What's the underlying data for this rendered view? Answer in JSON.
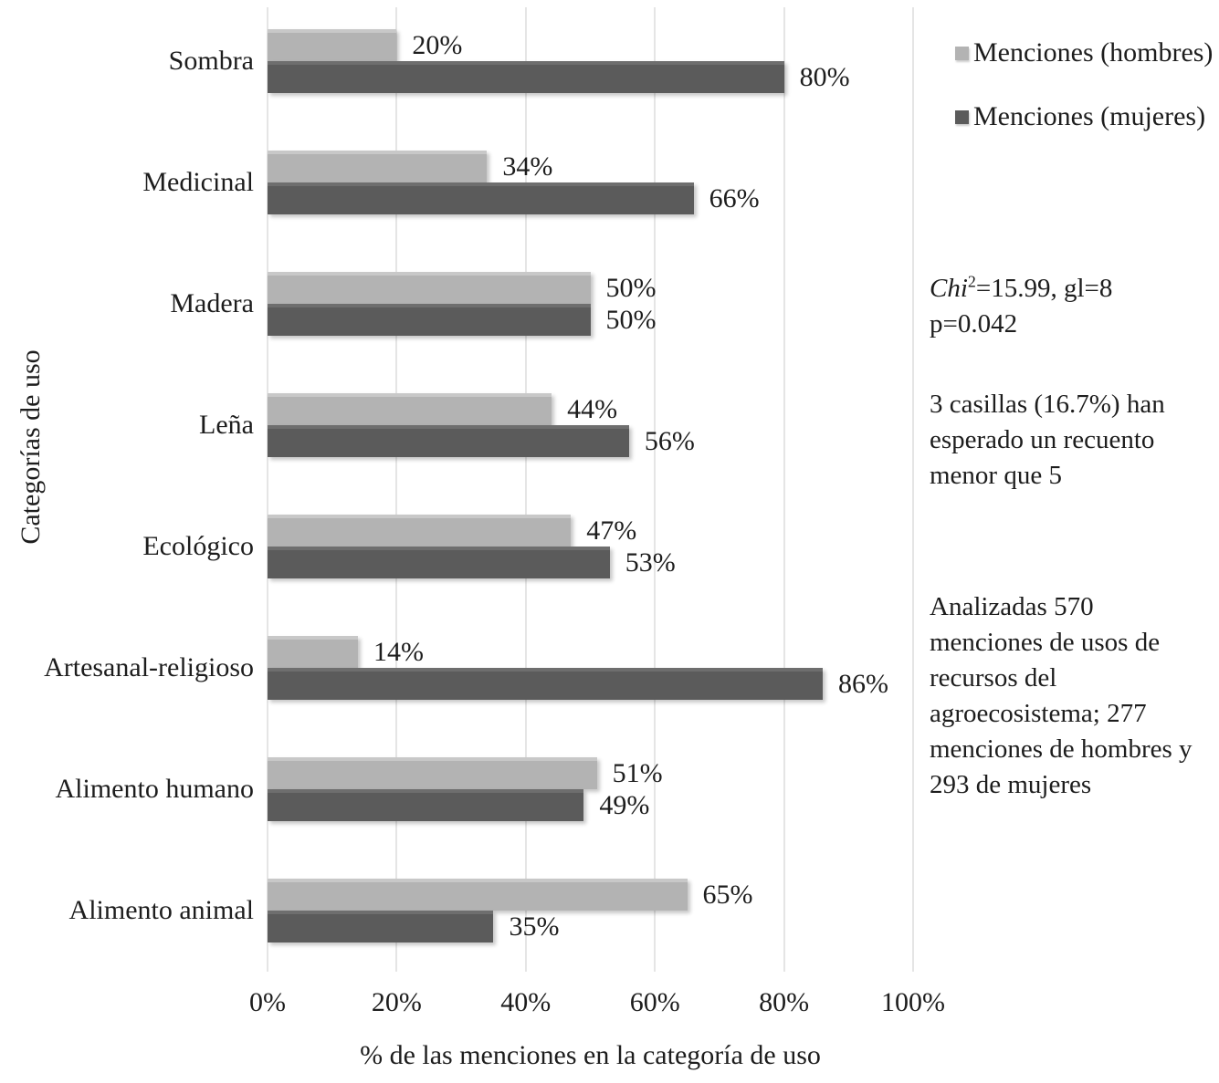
{
  "chart_data": {
    "type": "bar",
    "orientation": "horizontal",
    "title": "",
    "xlabel": "% de las menciones en la categoría de uso",
    "ylabel": "Categorías de uso",
    "xlim": [
      0,
      100
    ],
    "grid": "vertical",
    "legend_position": "top-right",
    "x_ticks": [
      {
        "value": 0,
        "label": "0%"
      },
      {
        "value": 20,
        "label": "20%"
      },
      {
        "value": 40,
        "label": "40%"
      },
      {
        "value": 60,
        "label": "60%"
      },
      {
        "value": 80,
        "label": "80%"
      },
      {
        "value": 100,
        "label": "100%"
      }
    ],
    "categories": [
      "Sombra",
      "Medicinal",
      "Madera",
      "Leña",
      "Ecológico",
      "Artesanal-religioso",
      "Alimento humano",
      "Alimento animal"
    ],
    "series": [
      {
        "name": "Menciones (hombres)",
        "color": "#b3b3b3",
        "values": [
          20,
          34,
          50,
          44,
          47,
          14,
          51,
          65
        ]
      },
      {
        "name": "Menciones (mujeres)",
        "color": "#5b5b5b",
        "values": [
          80,
          66,
          50,
          56,
          53,
          86,
          49,
          35
        ]
      }
    ],
    "value_suffix": "%"
  },
  "annotations": {
    "chi_italic": "Chi",
    "chi_sup": "2",
    "chi_rest": "=15.99, gl=8",
    "p_value": "p=0.042",
    "note_casillas": "3 casillas (16.7%) han esperado un recuento menor que 5",
    "note_analizadas": "Analizadas 570 menciones de usos de recursos del agroecosistema; 277 menciones de hombres y 293 de mujeres"
  },
  "colors": {
    "background": "#ffffff",
    "grid": "#e5e5e5",
    "text": "#1d1d1d"
  }
}
